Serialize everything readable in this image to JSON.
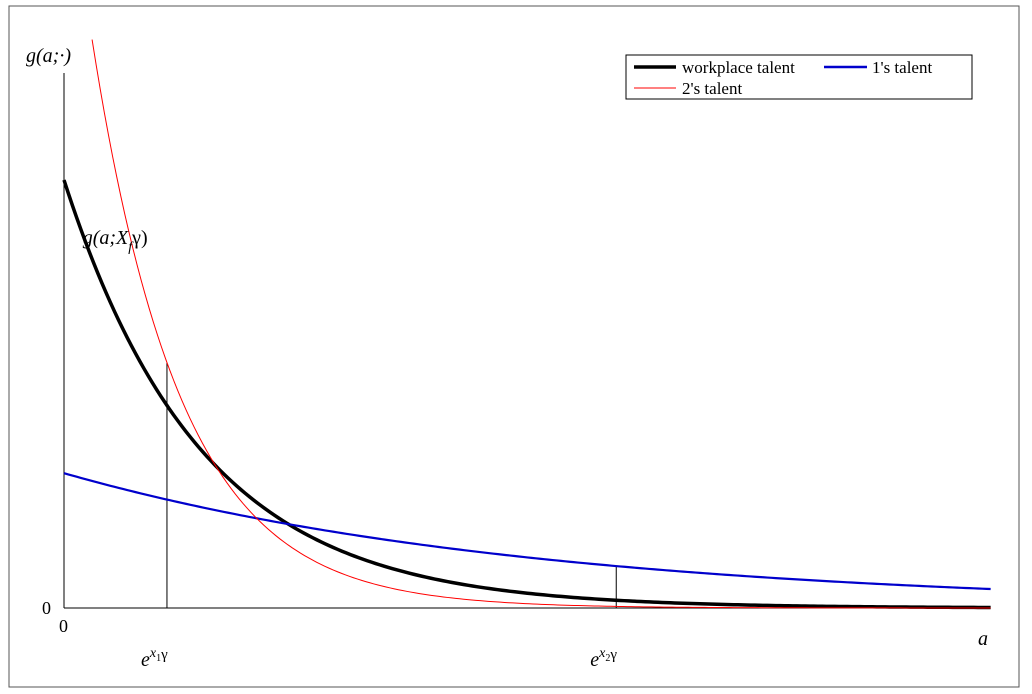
{
  "chart_data": {
    "type": "line",
    "title": "",
    "xlabel": "a",
    "ylabel": "g(a;·)",
    "y_zero_label": "0",
    "x_zero_label": "0",
    "xlim": [
      0,
      1
    ],
    "ylim": [
      0,
      1
    ],
    "grid": false,
    "legend": "top-right",
    "x_ticks": [
      {
        "x": 0.11,
        "base": "e",
        "sup": "x",
        "sub": "1",
        "tail": "γ"
      },
      {
        "x": 0.59,
        "base": "e",
        "sup": "x",
        "sub": "2",
        "tail": "γ"
      }
    ],
    "annotation": {
      "prefix": "g(a;X",
      "sub": "f",
      "suffix": "γ)",
      "x": 0.02,
      "y": 0.85
    },
    "series": [
      {
        "name": "workplace talent",
        "color": "#000000",
        "line_width": 3.5,
        "function": "exp",
        "y0": 1.0,
        "rate": 6.8,
        "xmax": 0.99
      },
      {
        "name": "1's talent",
        "color": "#0000cc",
        "line_width": 2.2,
        "function": "exp",
        "y0": 0.315,
        "rate": 1.98,
        "xmax": 0.99
      },
      {
        "name": "2's talent",
        "color": "#ff0000",
        "line_width": 1,
        "function": "exp",
        "y0": 1.82,
        "rate": 10.5,
        "xmin": 0.03,
        "xmax": 0.99
      }
    ]
  }
}
